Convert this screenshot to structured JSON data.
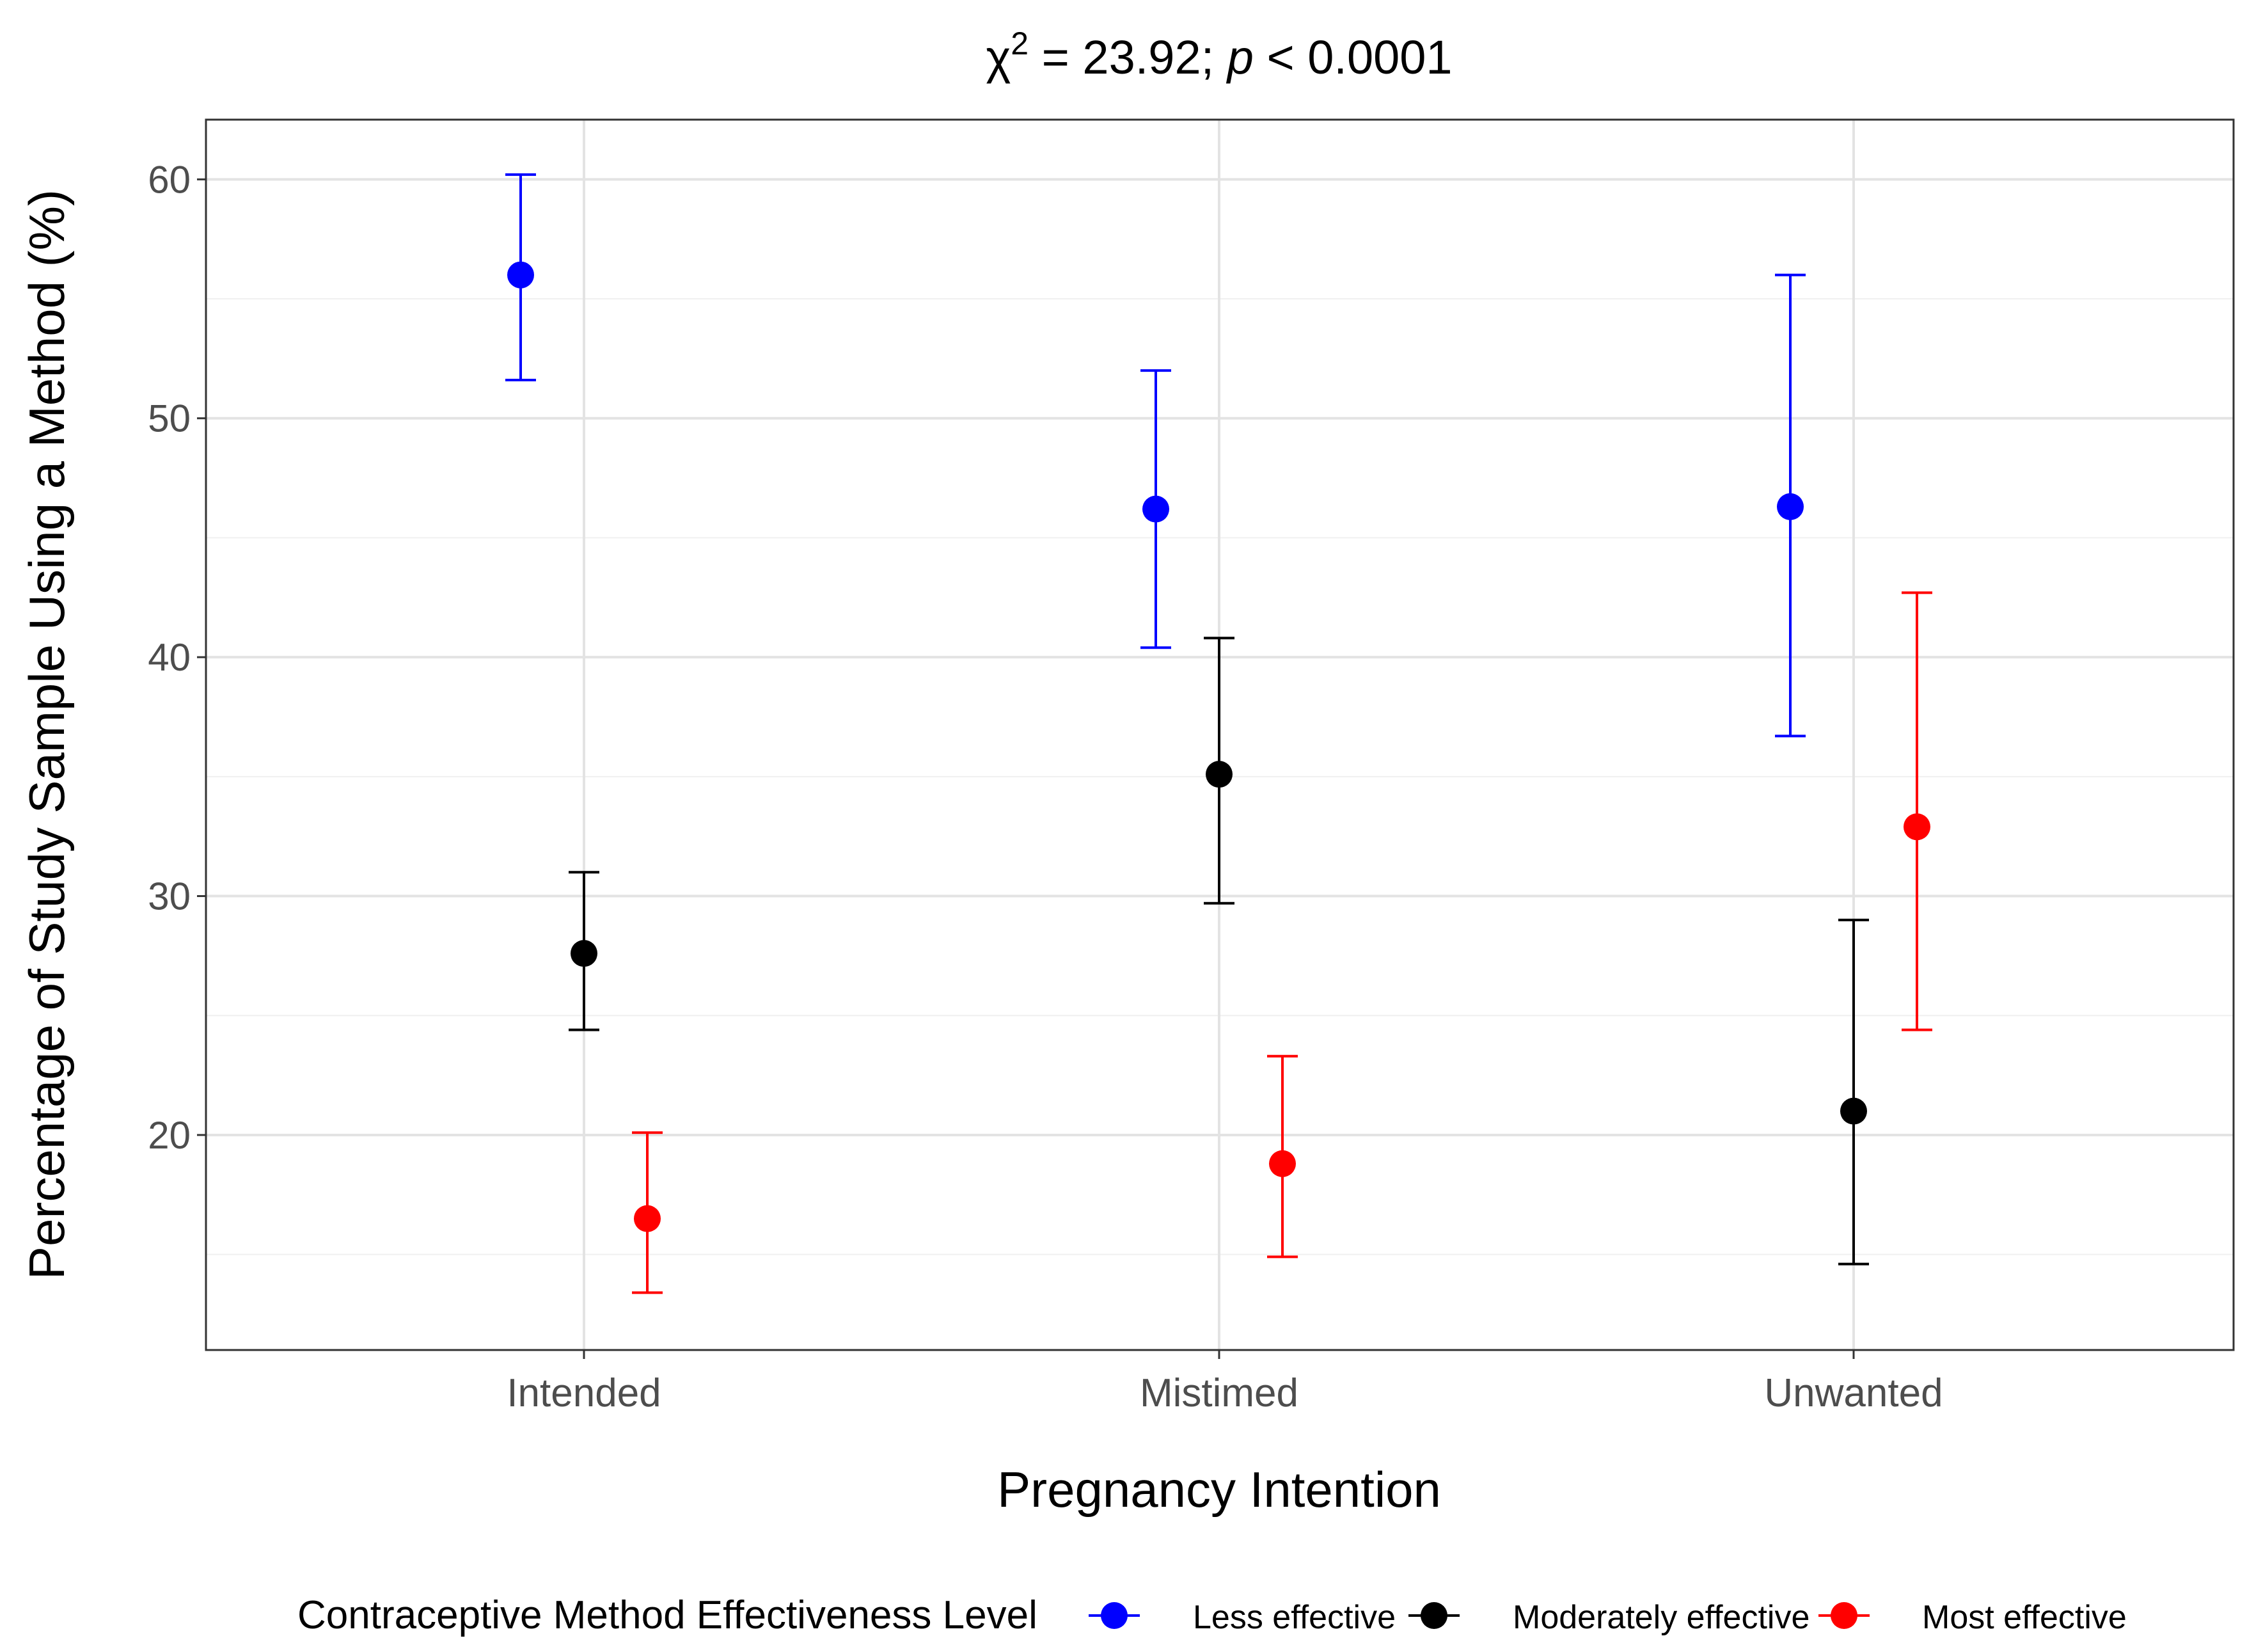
{
  "chart_data": {
    "type": "scatter",
    "title_prefix": "χ",
    "title_sup": "2",
    "title_mid": " = 23.92; ",
    "title_p": "p",
    "title_suffix": " < 0.0001",
    "xlabel": "Pregnancy Intention",
    "ylabel": "Percentage of Study Sample Using a Method (%)",
    "categories": [
      "Intended",
      "Mistimed",
      "Unwanted"
    ],
    "ylim": [
      11,
      62.5
    ],
    "yticks": [
      20,
      30,
      40,
      50,
      60
    ],
    "ytick_labels": [
      "20",
      "30",
      "40",
      "50",
      "60"
    ],
    "grid": true,
    "legend": {
      "position": "bottom",
      "title": "Contraceptive Method Effectiveness Level"
    },
    "series": [
      {
        "name": "Less effective",
        "color": "#0000FF",
        "values": [
          56.0,
          46.2,
          46.3
        ],
        "lower": [
          51.6,
          40.4,
          36.7
        ],
        "upper": [
          60.2,
          52.0,
          56.0
        ]
      },
      {
        "name": "Moderately effective",
        "color": "#000000",
        "values": [
          27.6,
          35.1,
          21.0
        ],
        "lower": [
          24.4,
          29.7,
          14.6
        ],
        "upper": [
          31.0,
          40.8,
          29.0
        ]
      },
      {
        "name": "Most effective",
        "color": "#FF0000",
        "values": [
          16.5,
          18.8,
          32.9
        ],
        "lower": [
          13.4,
          14.9,
          24.4
        ],
        "upper": [
          20.1,
          23.3,
          42.7
        ]
      }
    ]
  }
}
